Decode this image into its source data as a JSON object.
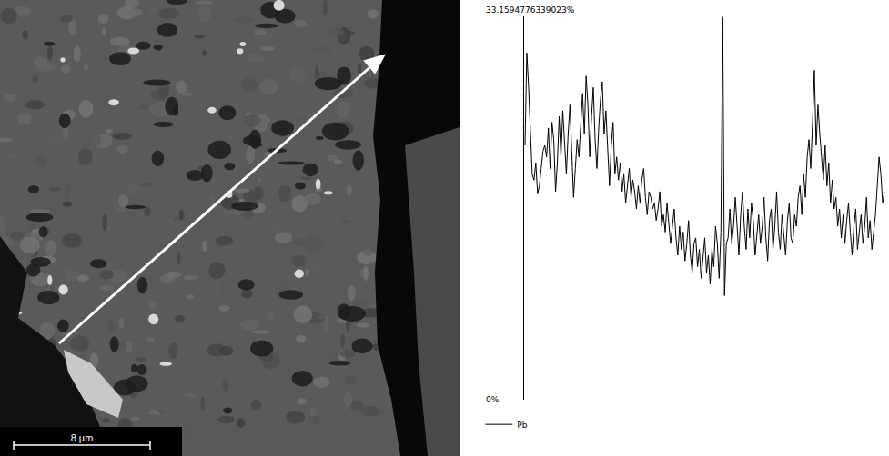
{
  "chart_data": {
    "type": "line",
    "series": [
      {
        "name": "Pb",
        "color": "#000000",
        "values": [
          22.0,
          30.0,
          27.0,
          23.5,
          19.5,
          19.0,
          20.5,
          17.8,
          18.5,
          20.0,
          21.5,
          22.0,
          21.0,
          23.5,
          20.0,
          24.0,
          22.5,
          18.0,
          20.5,
          24.5,
          21.0,
          25.0,
          22.0,
          19.5,
          23.0,
          25.5,
          21.5,
          17.5,
          20.0,
          22.5,
          21.0,
          24.0,
          26.5,
          23.0,
          28.0,
          25.5,
          21.0,
          24.5,
          27.0,
          22.5,
          20.0,
          23.5,
          26.0,
          27.5,
          23.0,
          25.0,
          21.5,
          18.5,
          22.0,
          24.0,
          19.5,
          21.0,
          19.0,
          20.5,
          18.0,
          19.5,
          17.0,
          18.5,
          20.0,
          17.5,
          19.0,
          18.0,
          16.5,
          18.5,
          17.0,
          19.0,
          20.0,
          17.5,
          16.0,
          18.0,
          17.5,
          16.5,
          17.0,
          15.5,
          16.5,
          18.0,
          15.0,
          16.0,
          14.5,
          17.0,
          15.5,
          13.5,
          15.0,
          16.5,
          14.0,
          12.5,
          15.0,
          13.0,
          14.5,
          12.0,
          13.5,
          15.5,
          12.5,
          11.0,
          13.5,
          14.0,
          11.5,
          13.0,
          10.5,
          12.0,
          14.0,
          11.0,
          12.5,
          10.0,
          13.0,
          11.5,
          15.0,
          13.5,
          10.5,
          14.5,
          33.1,
          9.0,
          13.5,
          14.0,
          16.5,
          13.5,
          15.0,
          17.5,
          14.5,
          12.5,
          16.0,
          18.0,
          15.0,
          13.0,
          16.5,
          14.0,
          17.0,
          15.5,
          12.5,
          14.5,
          16.0,
          13.5,
          15.0,
          17.5,
          14.0,
          12.0,
          15.5,
          16.5,
          13.0,
          15.0,
          18.0,
          14.5,
          13.0,
          16.0,
          14.0,
          12.5,
          15.5,
          17.0,
          14.0,
          13.5,
          16.0,
          15.0,
          17.5,
          18.5,
          16.0,
          19.5,
          17.5,
          21.0,
          22.5,
          20.0,
          24.0,
          28.5,
          22.0,
          25.5,
          23.0,
          21.0,
          19.0,
          22.0,
          18.5,
          20.5,
          17.0,
          19.0,
          16.5,
          17.5,
          15.0,
          16.5,
          14.0,
          16.0,
          13.5,
          15.5,
          17.0,
          14.5,
          12.5,
          15.0,
          16.5,
          13.0,
          14.5,
          16.0,
          13.5,
          15.0,
          17.5,
          14.0,
          15.5,
          13.0,
          14.5,
          16.0,
          18.5,
          21.0,
          19.5,
          17.0,
          18.0
        ]
      }
    ],
    "ylim": [
      0,
      33.1594776339023
    ],
    "yticks": [
      {
        "value": 0,
        "label": "0%"
      },
      {
        "value": 33.1594776339023,
        "label": "33.1594776339023%"
      }
    ],
    "grid": false,
    "legend": "bottom left",
    "tick_labels": "y"
  },
  "micrograph": {
    "scale_bar_label": "8 µm"
  }
}
